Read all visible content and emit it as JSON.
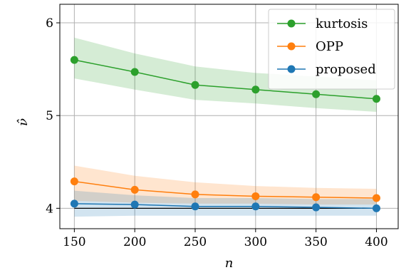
{
  "chart_data": {
    "type": "line",
    "xlabel": "n",
    "ylabel": "ν̂",
    "x": [
      150,
      200,
      250,
      300,
      350,
      400
    ],
    "xticks": [
      "150",
      "200",
      "250",
      "300",
      "350",
      "400"
    ],
    "yticks": [
      "4",
      "5",
      "6"
    ],
    "xlim": [
      138,
      418
    ],
    "ylim": [
      3.78,
      6.2
    ],
    "grid": true,
    "legend_position": "top-right",
    "reference_line": 4.0,
    "series": [
      {
        "name": "kurtosis",
        "color": "#2ca02c",
        "fill": "#2ca02c",
        "values": [
          5.6,
          5.47,
          5.33,
          5.28,
          5.23,
          5.18
        ],
        "lower": [
          5.4,
          5.28,
          5.17,
          5.13,
          5.08,
          5.04
        ],
        "upper": [
          5.84,
          5.67,
          5.53,
          5.46,
          5.42,
          5.38
        ]
      },
      {
        "name": "OPP",
        "color": "#ff7f0e",
        "fill": "#ff7f0e",
        "values": [
          4.29,
          4.2,
          4.15,
          4.13,
          4.12,
          4.11
        ],
        "lower": [
          4.08,
          4.06,
          4.05,
          4.05,
          4.04,
          4.04
        ],
        "upper": [
          4.46,
          4.35,
          4.28,
          4.24,
          4.22,
          4.21
        ]
      },
      {
        "name": "proposed",
        "color": "#1f77b4",
        "fill": "#1f77b4",
        "values": [
          4.05,
          4.04,
          4.02,
          4.02,
          4.01,
          4.0
        ],
        "lower": [
          3.91,
          3.92,
          3.92,
          3.92,
          3.92,
          3.92
        ],
        "upper": [
          4.19,
          4.14,
          4.11,
          4.11,
          4.1,
          4.1
        ]
      }
    ]
  }
}
